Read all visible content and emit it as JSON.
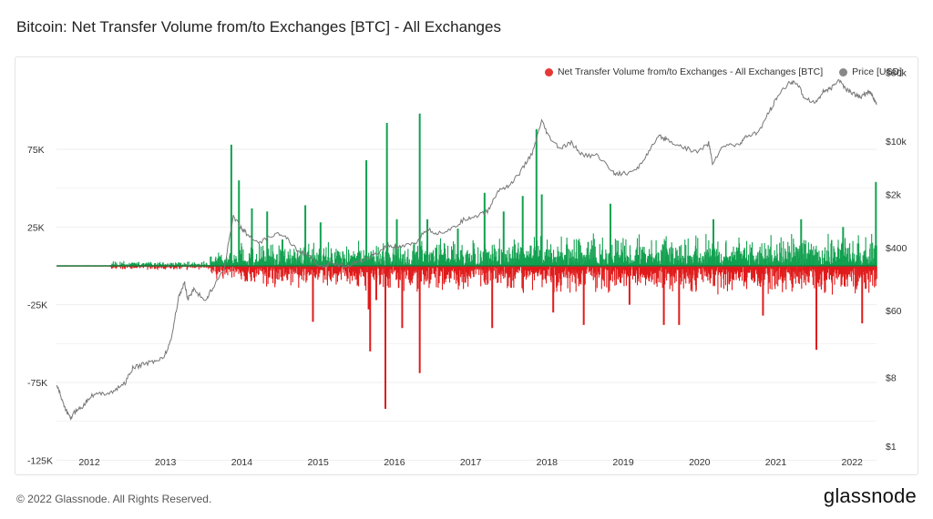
{
  "header": {
    "title": "Bitcoin: Net Transfer Volume from/to Exchanges [BTC] - All Exchanges"
  },
  "legend": {
    "series1": {
      "label": "Net Transfer Volume from/to Exchanges - All Exchanges [BTC]",
      "color": "#e53935"
    },
    "series2": {
      "label": "Price [USD]",
      "color": "#888888"
    }
  },
  "footer": {
    "copyright": "© 2022 Glassnode. All Rights Reserved.",
    "brand": "glassnode"
  },
  "chart_data": {
    "type": "bar",
    "title": "Bitcoin: Net Transfer Volume from/to Exchanges [BTC] - All Exchanges",
    "x_ticks": [
      "2012",
      "2013",
      "2014",
      "2015",
      "2016",
      "2017",
      "2018",
      "2019",
      "2020",
      "2021",
      "2022"
    ],
    "x_range": [
      2011.6,
      2022.35
    ],
    "y_left": {
      "ticks": [
        "75K",
        "25K",
        "-25K",
        "-75K",
        "-125K"
      ],
      "tick_values": [
        75000,
        25000,
        -25000,
        -75000,
        -125000
      ],
      "range": [
        -125000,
        125000
      ]
    },
    "y_right": {
      "scale": "log",
      "ticks": [
        "$80k",
        "$10k",
        "$2k",
        "$400",
        "$60",
        "$8",
        "$1"
      ],
      "tick_values": [
        80000,
        10000,
        2000,
        400,
        60,
        8,
        1
      ],
      "range": [
        1,
        80000
      ]
    },
    "colors": {
      "positive": "#12a150",
      "negative": "#e01b1b",
      "price": "#777777"
    },
    "net_transfer_spikes": [
      {
        "date": 2013.88,
        "value": 78000
      },
      {
        "date": 2013.98,
        "value": 55000
      },
      {
        "date": 2014.15,
        "value": 37000
      },
      {
        "date": 2014.35,
        "value": 35000
      },
      {
        "date": 2014.55,
        "value": 17000
      },
      {
        "date": 2014.85,
        "value": 39000
      },
      {
        "date": 2015.05,
        "value": 28000
      },
      {
        "date": 2014.95,
        "value": -36000
      },
      {
        "date": 2015.65,
        "value": 68000
      },
      {
        "date": 2015.68,
        "value": -28000
      },
      {
        "date": 2015.7,
        "value": -55000
      },
      {
        "date": 2015.78,
        "value": -22000
      },
      {
        "date": 2015.92,
        "value": 92000
      },
      {
        "date": 2015.9,
        "value": -92000
      },
      {
        "date": 2016.05,
        "value": 30000
      },
      {
        "date": 2016.12,
        "value": -40000
      },
      {
        "date": 2016.35,
        "value": 98000
      },
      {
        "date": 2016.35,
        "value": -69000
      },
      {
        "date": 2016.45,
        "value": 30000
      },
      {
        "date": 2016.85,
        "value": 24000
      },
      {
        "date": 2017.2,
        "value": 47000
      },
      {
        "date": 2017.3,
        "value": -40000
      },
      {
        "date": 2017.45,
        "value": 35000
      },
      {
        "date": 2017.7,
        "value": 45000
      },
      {
        "date": 2017.88,
        "value": 88000
      },
      {
        "date": 2017.95,
        "value": 46000
      },
      {
        "date": 2018.1,
        "value": -30000
      },
      {
        "date": 2018.5,
        "value": -38000
      },
      {
        "date": 2018.85,
        "value": 40000
      },
      {
        "date": 2019.1,
        "value": -25000
      },
      {
        "date": 2019.55,
        "value": -38000
      },
      {
        "date": 2019.75,
        "value": -38000
      },
      {
        "date": 2020.2,
        "value": 30000
      },
      {
        "date": 2020.85,
        "value": -32000
      },
      {
        "date": 2021.35,
        "value": 30000
      },
      {
        "date": 2021.55,
        "value": -54000
      },
      {
        "date": 2021.9,
        "value": 25000
      },
      {
        "date": 2022.15,
        "value": -37000
      },
      {
        "date": 2022.33,
        "value": 54000
      }
    ],
    "price_usd": [
      [
        2011.6,
        6.5
      ],
      [
        2011.65,
        4.8
      ],
      [
        2011.72,
        3.0
      ],
      [
        2011.78,
        2.3
      ],
      [
        2011.85,
        2.9
      ],
      [
        2011.95,
        3.4
      ],
      [
        2012.05,
        4.6
      ],
      [
        2012.2,
        4.9
      ],
      [
        2012.35,
        5.2
      ],
      [
        2012.5,
        6.8
      ],
      [
        2012.6,
        10.5
      ],
      [
        2012.75,
        12.0
      ],
      [
        2012.9,
        13.2
      ],
      [
        2013.0,
        14.5
      ],
      [
        2013.1,
        24.0
      ],
      [
        2013.2,
        90.0
      ],
      [
        2013.28,
        140.0
      ],
      [
        2013.32,
        85.0
      ],
      [
        2013.4,
        115.0
      ],
      [
        2013.55,
        80.0
      ],
      [
        2013.65,
        120.0
      ],
      [
        2013.8,
        220.0
      ],
      [
        2013.92,
        1050.0
      ],
      [
        2014.0,
        780.0
      ],
      [
        2014.1,
        600.0
      ],
      [
        2014.25,
        450.0
      ],
      [
        2014.45,
        600.0
      ],
      [
        2014.6,
        580.0
      ],
      [
        2014.75,
        380.0
      ],
      [
        2014.9,
        320.0
      ],
      [
        2015.05,
        220.0
      ],
      [
        2015.2,
        250.0
      ],
      [
        2015.4,
        230.0
      ],
      [
        2015.6,
        270.0
      ],
      [
        2015.8,
        330.0
      ],
      [
        2015.95,
        430.0
      ],
      [
        2016.1,
        400.0
      ],
      [
        2016.3,
        450.0
      ],
      [
        2016.45,
        700.0
      ],
      [
        2016.6,
        620.0
      ],
      [
        2016.8,
        720.0
      ],
      [
        2016.95,
        950.0
      ],
      [
        2017.1,
        1050.0
      ],
      [
        2017.25,
        1200.0
      ],
      [
        2017.4,
        2300.0
      ],
      [
        2017.55,
        2700.0
      ],
      [
        2017.7,
        4200.0
      ],
      [
        2017.85,
        7500.0
      ],
      [
        2017.96,
        18500.0
      ],
      [
        2018.05,
        11500.0
      ],
      [
        2018.2,
        8000.0
      ],
      [
        2018.35,
        9500.0
      ],
      [
        2018.5,
        6500.0
      ],
      [
        2018.7,
        6500.0
      ],
      [
        2018.9,
        3900.0
      ],
      [
        2019.0,
        3700.0
      ],
      [
        2019.2,
        4100.0
      ],
      [
        2019.35,
        7000.0
      ],
      [
        2019.5,
        11500.0
      ],
      [
        2019.6,
        10500.0
      ],
      [
        2019.8,
        8500.0
      ],
      [
        2020.0,
        7200.0
      ],
      [
        2020.15,
        9500.0
      ],
      [
        2020.2,
        5200.0
      ],
      [
        2020.35,
        8800.0
      ],
      [
        2020.55,
        9200.0
      ],
      [
        2020.65,
        11500.0
      ],
      [
        2020.8,
        13000.0
      ],
      [
        2020.95,
        25000.0
      ],
      [
        2021.05,
        38000.0
      ],
      [
        2021.2,
        58000.0
      ],
      [
        2021.3,
        60000.0
      ],
      [
        2021.4,
        38000.0
      ],
      [
        2021.55,
        32000.0
      ],
      [
        2021.65,
        45000.0
      ],
      [
        2021.75,
        48000.0
      ],
      [
        2021.85,
        65000.0
      ],
      [
        2021.95,
        48000.0
      ],
      [
        2022.05,
        42000.0
      ],
      [
        2022.15,
        38000.0
      ],
      [
        2022.25,
        45000.0
      ],
      [
        2022.3,
        39000.0
      ],
      [
        2022.35,
        30000.0
      ]
    ]
  }
}
